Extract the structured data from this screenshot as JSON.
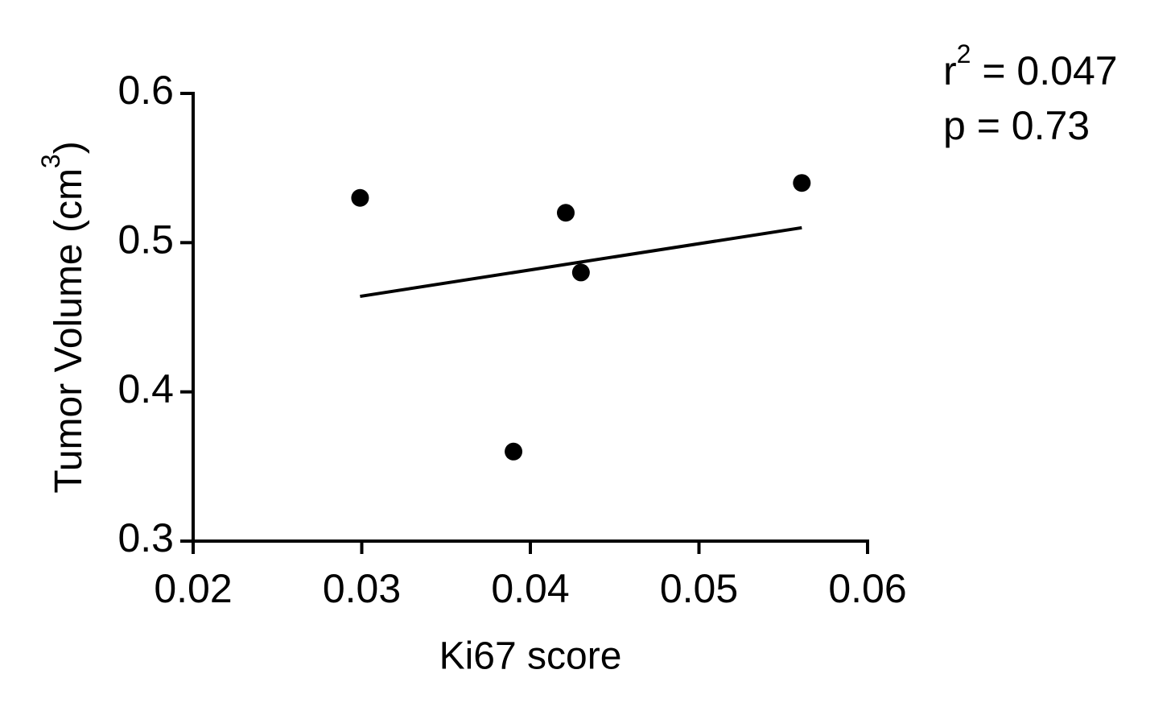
{
  "chart_data": {
    "type": "scatter",
    "x_label": "Ki67 score",
    "y_label": {
      "main": "Tumor Volume (cm",
      "superscript": "3",
      "end": ")"
    },
    "x": [
      0.0299,
      0.0421,
      0.043,
      0.039,
      0.0561
    ],
    "values": [
      0.53,
      0.52,
      0.48,
      0.36,
      0.54
    ],
    "color": "#000000",
    "fit": {
      "x": [
        0.0299,
        0.0561
      ],
      "y": [
        0.464,
        0.51
      ]
    },
    "xlim": [
      0.02,
      0.06
    ],
    "xticks": [
      0.02,
      0.03,
      0.04,
      0.05,
      0.06
    ],
    "ylim": [
      0.3,
      0.6
    ],
    "yticks": [
      0.3,
      0.4,
      0.5,
      0.6
    ],
    "annotations": [
      {
        "lead": "r",
        "superscript": "2",
        "rest": " = 0.047"
      },
      {
        "text": "p  = 0.73"
      }
    ]
  }
}
